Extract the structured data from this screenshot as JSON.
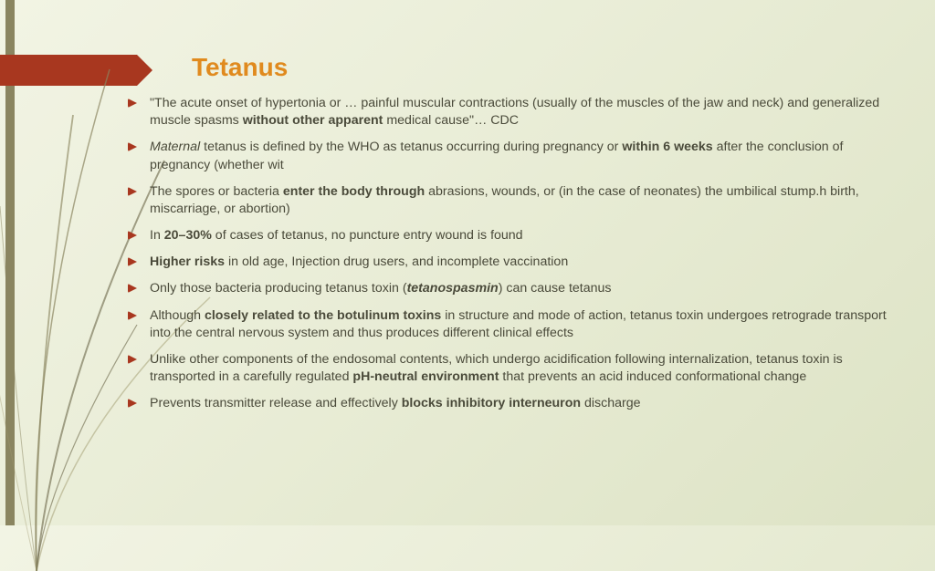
{
  "colors": {
    "background_start": "#f2f4e4",
    "background_end": "#dde3c5",
    "accent_bar": "#8a8560",
    "banner": "#a8371f",
    "title": "#e08a1e",
    "body_text": "#4a4a3a",
    "bullet": "#a8371f"
  },
  "typography": {
    "title_fontsize": 28,
    "body_fontsize": 14.2,
    "font_family": "Century Gothic"
  },
  "title": "Tetanus",
  "bullets": [
    [
      {
        "t": "\"The acute onset of hypertonia or … painful muscular contractions (usually of the muscles of the jaw and neck) and generalized muscle spasms "
      },
      {
        "t": "without other apparent",
        "b": true
      },
      {
        "t": " medical cause\"… CDC"
      }
    ],
    [
      {
        "t": "Maternal",
        "i": true
      },
      {
        "t": " tetanus is defined by the WHO as tetanus occurring during pregnancy or "
      },
      {
        "t": "within 6 weeks",
        "b": true
      },
      {
        "t": " after the conclusion of pregnancy (whether wit"
      }
    ],
    [
      {
        "t": "The spores or bacteria "
      },
      {
        "t": "enter the body through",
        "b": true
      },
      {
        "t": " abrasions, wounds, or (in the case of neonates) the umbilical stump.h birth, miscarriage, or abortion)"
      }
    ],
    [
      {
        "t": "In "
      },
      {
        "t": "20–30%",
        "b": true
      },
      {
        "t": " of cases of tetanus, no puncture entry wound is found"
      }
    ],
    [
      {
        "t": "Higher risks",
        "b": true
      },
      {
        "t": " in old age, Injection drug users, and incomplete vaccination"
      }
    ],
    [
      {
        "t": "Only those bacteria producing tetanus toxin ("
      },
      {
        "t": "tetanospasmin",
        "b": true,
        "i": true
      },
      {
        "t": ") can cause tetanus"
      }
    ],
    [
      {
        "t": "Although "
      },
      {
        "t": "closely related to the botulinum toxins",
        "b": true
      },
      {
        "t": " in structure and mode of action, tetanus toxin undergoes retrograde transport into the central nervous system and thus produces different clinical effects"
      }
    ],
    [
      {
        "t": "Unlike other components of the endosomal contents, which undergo acidification following internalization, tetanus toxin is transported in a carefully regulated "
      },
      {
        "t": "pH-neutral environment",
        "b": true
      },
      {
        "t": " that prevents an acid induced conformational change"
      }
    ],
    [
      {
        "t": "Prevents transmitter release and effectively "
      },
      {
        "t": "blocks inhibitory interneuron",
        "b": true
      },
      {
        "t": " discharge"
      }
    ]
  ]
}
